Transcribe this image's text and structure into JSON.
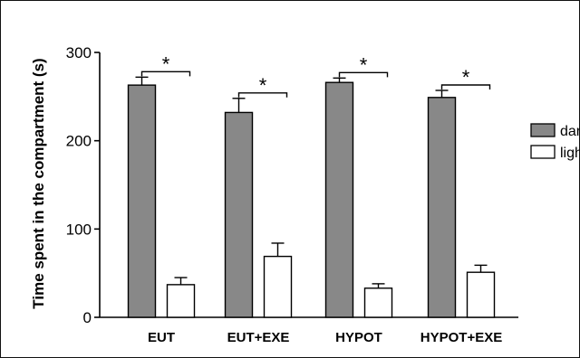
{
  "chart_data": {
    "type": "bar",
    "title": "",
    "xlabel": "",
    "ylabel": "Time spent in the compartment (s)",
    "ylim": [
      0,
      300
    ],
    "yticks": [
      0,
      100,
      200,
      300
    ],
    "categories": [
      "EUT",
      "EUT+EXE",
      "HYPOT",
      "HYPOT+EXE"
    ],
    "series": [
      {
        "name": "dark",
        "values": [
          263,
          232,
          266,
          249
        ],
        "errors": [
          9,
          16,
          5,
          8
        ],
        "color": "#888888"
      },
      {
        "name": "light",
        "values": [
          37,
          69,
          33,
          51
        ],
        "errors": [
          8,
          15,
          5,
          8
        ],
        "color": "#ffffff"
      }
    ],
    "significance": [
      "*",
      "*",
      "*",
      "*"
    ],
    "legend_position": "right",
    "grid": false
  }
}
